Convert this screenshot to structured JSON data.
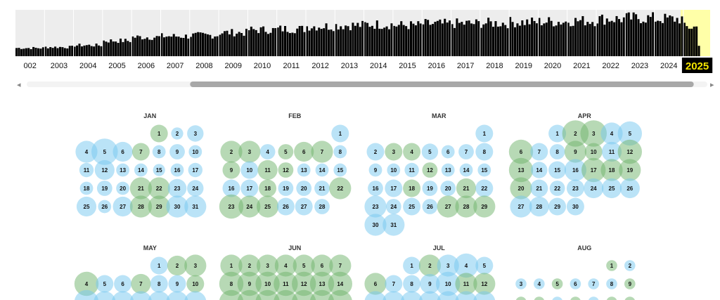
{
  "colors": {
    "accent_yellow": "#ffffa8",
    "selected_label_bg": "#000000",
    "selected_label_fg": "#f5e500",
    "bubble_blue": "#76c8ef",
    "bubble_green": "#6fb46b",
    "bubble_gray": "#cccccc",
    "track": "#f3f3f3",
    "thumb": "#a8a8a8"
  },
  "timeline": {
    "years": [
      "002",
      "2003",
      "2004",
      "2005",
      "2006",
      "2007",
      "2008",
      "2009",
      "2010",
      "2011",
      "2012",
      "2013",
      "2014",
      "2015",
      "2016",
      "2017",
      "2018",
      "2019",
      "2020",
      "2021",
      "2022",
      "2023",
      "2024",
      "2025"
    ],
    "selected_year": "2025",
    "relative_capture_volume_by_year": [
      0.18,
      0.2,
      0.24,
      0.34,
      0.42,
      0.44,
      0.46,
      0.52,
      0.58,
      0.6,
      0.66,
      0.68,
      0.7,
      0.68,
      0.71,
      0.72,
      0.73,
      0.75,
      0.76,
      0.78,
      0.82,
      0.84,
      0.82,
      0.64
    ]
  },
  "scrollbar": {
    "left_arrow": "◂",
    "right_arrow": "▸",
    "thumb_fraction_start": 0.24,
    "thumb_fraction_end": 0.98
  },
  "calendar": {
    "months": [
      {
        "name": "JAN",
        "first_weekday": 4,
        "days": 31,
        "scale": [
          0.8,
          0.55,
          0.75,
          1.0,
          1.2,
          0.9,
          0.8,
          0.6,
          0.7,
          0.6,
          0.65,
          0.9,
          0.6,
          0.6,
          0.55,
          0.6,
          0.65,
          0.6,
          0.7,
          0.6,
          1.0,
          1.0,
          0.85,
          0.75,
          0.9,
          0.6,
          0.9,
          1.0,
          1.0,
          1.0,
          1.0
        ],
        "green": [
          1,
          7,
          21,
          22,
          28,
          29
        ]
      },
      {
        "name": "FEB",
        "first_weekday": 6,
        "days": 28,
        "scale": [
          0.8,
          1.0,
          1.0,
          0.7,
          0.7,
          0.9,
          1.0,
          0.6,
          0.8,
          0.8,
          0.9,
          0.7,
          0.6,
          0.6,
          0.6,
          0.8,
          0.8,
          0.8,
          0.7,
          0.7,
          0.7,
          1.0,
          1.1,
          1.0,
          1.0,
          0.8,
          0.8,
          0.7
        ],
        "green": [
          2,
          3,
          5,
          6,
          7,
          9,
          11,
          12,
          18,
          22,
          23,
          24,
          25
        ]
      },
      {
        "name": "MAR",
        "first_weekday": 6,
        "days": 31,
        "scale": [
          0.8,
          0.8,
          0.8,
          0.8,
          0.75,
          0.6,
          0.7,
          0.8,
          0.6,
          0.6,
          0.65,
          0.7,
          0.6,
          0.6,
          0.6,
          0.7,
          0.8,
          0.8,
          0.7,
          0.7,
          0.9,
          0.8,
          1.0,
          0.7,
          0.8,
          0.7,
          1.0,
          1.0,
          1.0,
          1.0,
          1.0
        ],
        "green": [
          3,
          4,
          12,
          18,
          21,
          27,
          28,
          29
        ]
      },
      {
        "name": "APR",
        "first_weekday": 2,
        "days": 30,
        "scale": [
          0.8,
          1.2,
          1.2,
          1.0,
          1.1,
          1.1,
          0.8,
          0.7,
          1.0,
          0.8,
          0.9,
          1.1,
          1.1,
          0.75,
          0.8,
          1.0,
          1.1,
          1.0,
          1.0,
          1.0,
          0.8,
          0.7,
          0.8,
          0.9,
          0.9,
          0.9,
          1.0,
          0.9,
          0.8,
          0.8
        ],
        "green": [
          2,
          3,
          6,
          9,
          10,
          12,
          13,
          17,
          18,
          19,
          20
        ]
      },
      {
        "name": "MAY",
        "first_weekday": 4,
        "days": 31,
        "scale": [
          0.8,
          0.9,
          1.0,
          1.1,
          0.8,
          0.8,
          0.9,
          0.8,
          0.8,
          0.8,
          1.1,
          1.0,
          1.0,
          1.0,
          1.0,
          1.0,
          1.0
        ],
        "green": [
          2,
          3,
          4,
          7,
          10
        ]
      },
      {
        "name": "JUN",
        "first_weekday": 0,
        "days": 30,
        "scale": [
          1.0,
          1.0,
          1.0,
          1.0,
          1.0,
          1.0,
          1.0,
          1.1,
          1.1,
          1.1,
          1.1,
          1.1,
          1.1,
          1.1,
          1.1,
          1.1,
          1.1,
          1.1,
          1.1,
          1.1,
          1.1
        ],
        "green": [
          1,
          2,
          3,
          4,
          5,
          6,
          7,
          8,
          9,
          10,
          11,
          12,
          13,
          14,
          15,
          16,
          17,
          18,
          19,
          20,
          21
        ]
      },
      {
        "name": "JUL",
        "first_weekday": 2,
        "days": 31,
        "scale": [
          0.8,
          1.0,
          1.0,
          1.1,
          0.8,
          1.0,
          0.8,
          0.8,
          0.9,
          1.1,
          1.0,
          1.0,
          1.0,
          1.0,
          1.0,
          1.0,
          1.0,
          1.0,
          1.0
        ],
        "green": [
          2,
          6,
          11,
          12
        ]
      },
      {
        "name": "AUG",
        "first_weekday": 5,
        "days": 31,
        "scale": [
          0.5,
          0.5,
          0.5,
          0.5,
          0.5,
          0.5,
          0.5,
          0.5,
          0.5,
          0.5,
          0.5,
          0.5,
          0.5,
          0.5,
          0.5,
          0.5,
          0.5,
          0.5
        ],
        "green": [
          1,
          5,
          9,
          10,
          11,
          13,
          15,
          16
        ]
      }
    ]
  }
}
